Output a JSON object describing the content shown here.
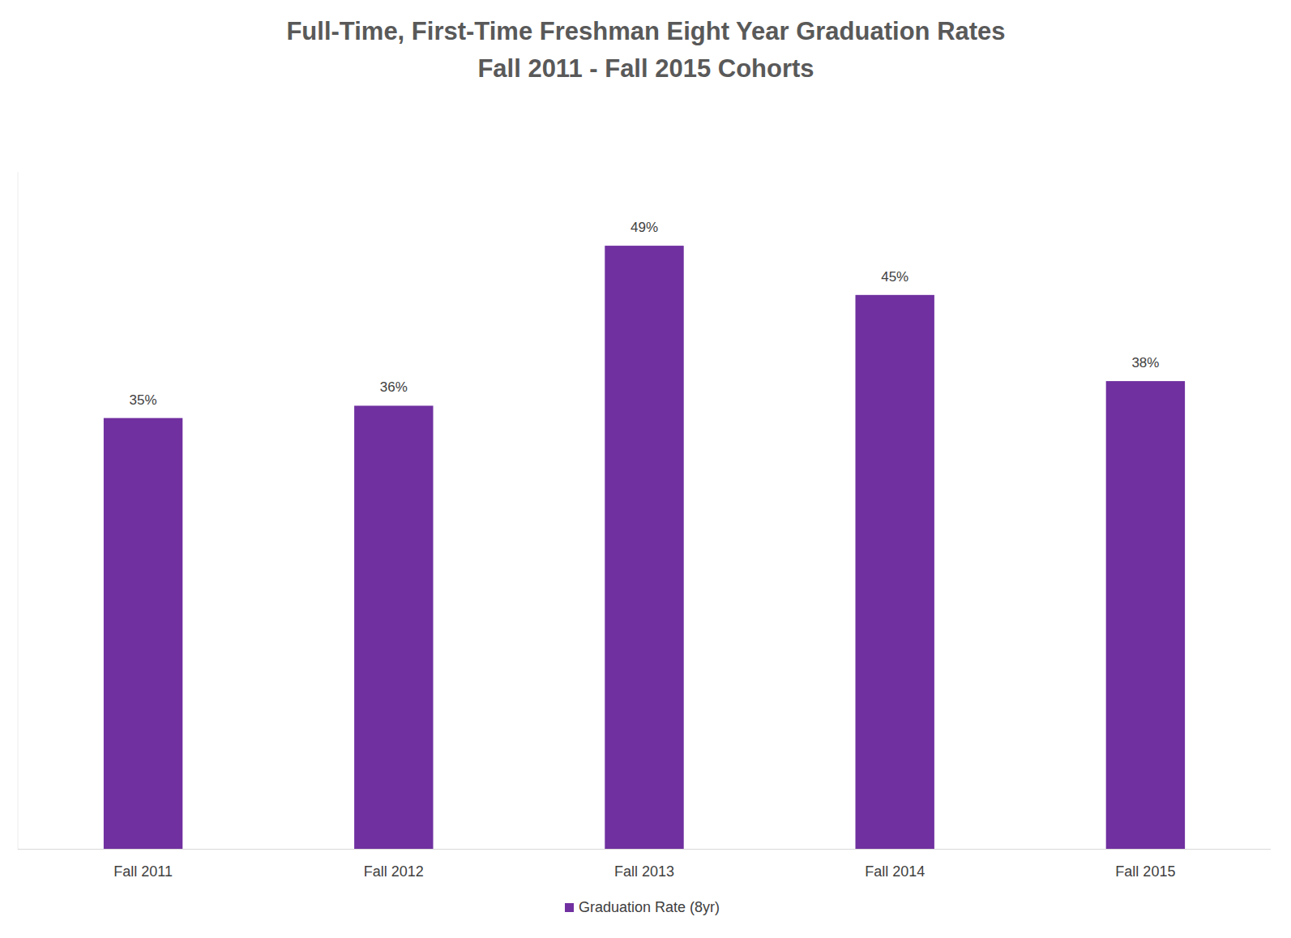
{
  "chart_data": {
    "type": "bar",
    "title": "Full-Time, First-Time Freshman Eight Year Graduation Rates",
    "subtitle": "Fall 2011 - Fall 2015 Cohorts",
    "categories": [
      "Fall 2011",
      "Fall 2012",
      "Fall 2013",
      "Fall 2014",
      "Fall 2015"
    ],
    "series": [
      {
        "name": "Graduation Rate (8yr)",
        "color": "#7030a0",
        "values": [
          35,
          36,
          49,
          45,
          38
        ],
        "value_labels": [
          "35%",
          "36%",
          "49%",
          "45%",
          "38%"
        ]
      }
    ],
    "ylim": [
      0,
      55
    ],
    "grid": false,
    "legend": "bottom",
    "data_labels": true,
    "tick_labels": "x"
  }
}
